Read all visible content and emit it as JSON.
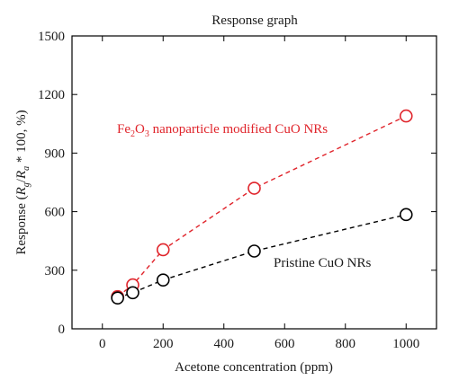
{
  "chart_data": {
    "type": "line",
    "title": "Response graph",
    "xlabel": "Acetone concentration (ppm)",
    "ylabel_parts": {
      "lead": "Response (",
      "r": "R",
      "g": "g",
      "slash": "/",
      "a": "a",
      "tail": " * 100, %)"
    },
    "xlim": [
      -100,
      1100
    ],
    "ylim": [
      0,
      1500
    ],
    "x_ticks": [
      0,
      200,
      400,
      600,
      800,
      1000
    ],
    "y_ticks": [
      0,
      300,
      600,
      900,
      1200,
      1500
    ],
    "grid": false,
    "series": [
      {
        "name_parts": {
          "pre": "Fe",
          "sub1": "2",
          "mid": "O",
          "sub2": "3",
          "post": " nanoparticle modified CuO NRs"
        },
        "color": "#e0242b",
        "marker": "open-circle",
        "line_style": "dashed",
        "x": [
          50,
          100,
          200,
          500,
          1000
        ],
        "y": [
          165,
          225,
          405,
          720,
          1090
        ]
      },
      {
        "name": "Pristine CuO NRs",
        "color": "#000000",
        "marker": "open-circle",
        "line_style": "dashed",
        "x": [
          50,
          100,
          200,
          500,
          1000
        ],
        "y": [
          158,
          185,
          250,
          398,
          585
        ]
      }
    ]
  }
}
